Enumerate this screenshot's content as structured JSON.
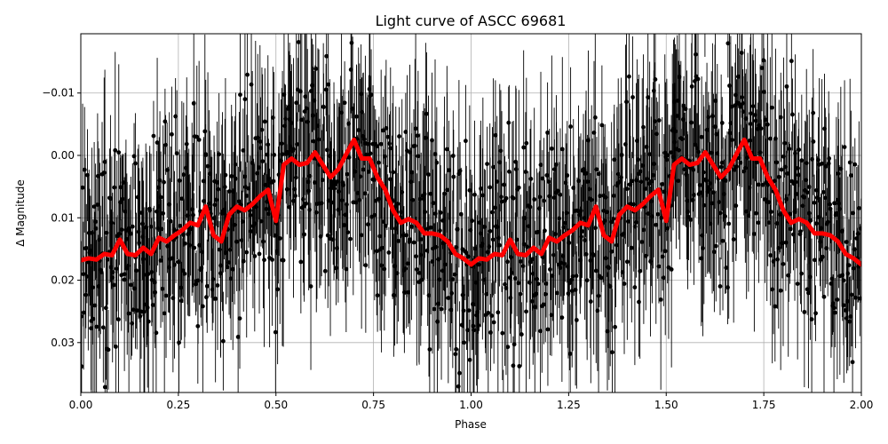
{
  "chart_data": {
    "type": "scatter",
    "title": "Light curve of ASCC 69681",
    "xlabel": "Phase",
    "ylabel": "Δ Magnitude",
    "xlim": [
      0.0,
      2.0
    ],
    "ylim": [
      0.038,
      -0.0195
    ],
    "y_inverted": true,
    "grid": true,
    "x_ticks": [
      0.0,
      0.25,
      0.5,
      0.75,
      1.0,
      1.25,
      1.5,
      1.75,
      2.0
    ],
    "x_tick_labels": [
      "0.00",
      "0.25",
      "0.50",
      "0.75",
      "1.00",
      "1.25",
      "1.50",
      "1.75",
      "2.00"
    ],
    "y_ticks": [
      -0.01,
      0.0,
      0.01,
      0.02,
      0.03
    ],
    "y_tick_labels": [
      "−0.01",
      "0.00",
      "0.01",
      "0.02",
      "0.03"
    ],
    "observations": {
      "marker_color": "#000000",
      "errorbar_color": "#000000",
      "approx_points": 1200,
      "scatter_range": [
        -0.012,
        0.036
      ]
    },
    "model": {
      "color": "#ff0000",
      "x": [
        0.0,
        0.02,
        0.04,
        0.06,
        0.08,
        0.1,
        0.12,
        0.14,
        0.16,
        0.18,
        0.2,
        0.22,
        0.24,
        0.26,
        0.28,
        0.3,
        0.32,
        0.34,
        0.36,
        0.38,
        0.4,
        0.42,
        0.44,
        0.46,
        0.48,
        0.5,
        0.52,
        0.54,
        0.56,
        0.58,
        0.6,
        0.62,
        0.64,
        0.66,
        0.68,
        0.7,
        0.72,
        0.74,
        0.76,
        0.78,
        0.8,
        0.82,
        0.84,
        0.86,
        0.88,
        0.9,
        0.92,
        0.94,
        0.96,
        0.98,
        1.0
      ],
      "y": [
        0.0168,
        0.0165,
        0.0167,
        0.0158,
        0.016,
        0.0135,
        0.0158,
        0.016,
        0.0148,
        0.0158,
        0.0132,
        0.0138,
        0.0128,
        0.012,
        0.0108,
        0.0112,
        0.0082,
        0.0128,
        0.0138,
        0.0095,
        0.0082,
        0.0088,
        0.0078,
        0.0065,
        0.0055,
        0.0105,
        0.0015,
        0.0005,
        0.0015,
        0.0012,
        -0.0005,
        0.0015,
        0.0035,
        0.0022,
        -0.0002,
        -0.0025,
        0.0005,
        0.0005,
        0.0035,
        0.0055,
        0.0088,
        0.0108,
        0.0102,
        0.0108,
        0.0125,
        0.0125,
        0.0128,
        0.0138,
        0.0158,
        0.0165,
        0.0175
      ]
    }
  }
}
